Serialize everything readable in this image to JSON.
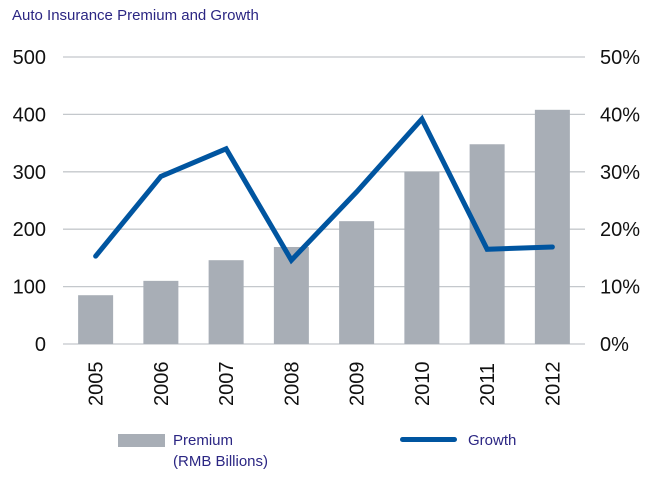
{
  "chart_data": {
    "type": "bar",
    "title": "Auto Insurance Premium and Growth",
    "categories": [
      "2005",
      "2006",
      "2007",
      "2008",
      "2009",
      "2010",
      "2011",
      "2012"
    ],
    "series": [
      {
        "name": "Premium (RMB Billions)",
        "type": "bar",
        "axis": "left",
        "values": [
          85,
          110,
          146,
          169,
          214,
          300,
          348,
          408
        ],
        "color": "#a8aeb6"
      },
      {
        "name": "Growth",
        "type": "line",
        "axis": "right",
        "values": [
          15.3,
          29.2,
          34.0,
          14.6,
          26.5,
          39.2,
          16.5,
          16.9
        ],
        "unit": "%",
        "color": "#0055a0"
      }
    ],
    "left_axis": {
      "label": "",
      "ylim": [
        0,
        500
      ],
      "ticks": [
        "0",
        "100",
        "200",
        "300",
        "400",
        "500"
      ]
    },
    "right_axis": {
      "label": "",
      "ylim": [
        0,
        50
      ],
      "ticks": [
        "0%",
        "10%",
        "20%",
        "30%",
        "40%",
        "50%"
      ]
    },
    "xlabel": "",
    "grid": true,
    "legend": {
      "placement": "bottom",
      "entries": [
        {
          "label_line1": "Premium",
          "label_line2": "(RMB Billions)"
        },
        {
          "label_line1": "Growth"
        }
      ]
    }
  }
}
